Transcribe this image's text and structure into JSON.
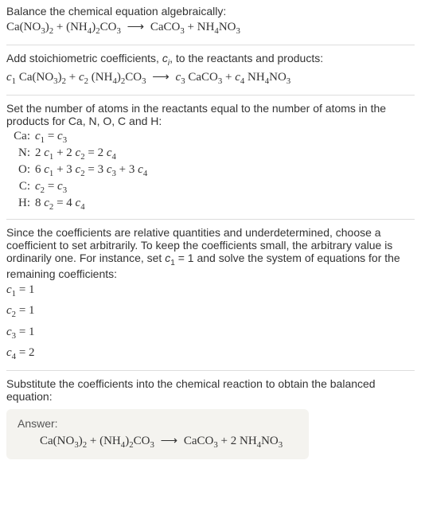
{
  "intro": {
    "line1": "Balance the chemical equation algebraically:"
  },
  "step1": {
    "text": "Add stoichiometric coefficients, ",
    "ci": "c",
    "ci_sub": "i",
    "text2": ", to the reactants and products:"
  },
  "step2": {
    "line1": "Set the number of atoms in the reactants equal to the number of atoms in the products for Ca, N, O, C and H:",
    "rows": [
      {
        "el": "Ca:",
        "eq_lhs": "c",
        "eq": "1",
        "mid": " = ",
        "rhs_c": "c",
        "rhs_i": "3",
        "full": ""
      },
      {
        "el": "N:",
        "pre": "2 ",
        "c": "c",
        "i": "1",
        "mid": " + 2 ",
        "c2": "c",
        "i2": "2",
        "eq": " = 2 ",
        "c3": "c",
        "i3": "4"
      },
      {
        "el": "O:",
        "pre": "6 ",
        "c": "c",
        "i": "1",
        "mid": " + 3 ",
        "c2": "c",
        "i2": "2",
        "eq": " = 3 ",
        "c3": "c",
        "i3": "3",
        "mid2": " + 3 ",
        "c4": "c",
        "i4": "4"
      },
      {
        "el": "C:",
        "c": "c",
        "i": "2",
        "eq": " = ",
        "c3": "c",
        "i3": "3"
      },
      {
        "el": "H:",
        "pre": "8 ",
        "c": "c",
        "i": "2",
        "eq": " = 4 ",
        "c3": "c",
        "i3": "4"
      }
    ]
  },
  "step3": {
    "para": "Since the coefficients are relative quantities and underdetermined, choose a coefficient to set arbitrarily. To keep the coefficients small, the arbitrary value is ordinarily one. For instance, set ",
    "c1": "c",
    "c1i": "1",
    "para2": " = 1 and solve the system of equations for the remaining coefficients:",
    "sol": [
      {
        "c": "c",
        "i": "1",
        "v": " = 1"
      },
      {
        "c": "c",
        "i": "2",
        "v": " = 1"
      },
      {
        "c": "c",
        "i": "3",
        "v": " = 1"
      },
      {
        "c": "c",
        "i": "4",
        "v": " = 2"
      }
    ]
  },
  "step4": {
    "text": "Substitute the coefficients into the chemical reaction to obtain the balanced equation:"
  },
  "answer": {
    "label": "Answer:"
  },
  "chem": {
    "CaNO32": {
      "p1": "Ca(NO",
      "s1": "3",
      "p2": ")",
      "s2": "2"
    },
    "NH42CO3": {
      "p1": "(NH",
      "s1": "4",
      "p2": ")",
      "s2": "2",
      "p3": "CO",
      "s3": "3"
    },
    "CaCO3": {
      "p1": "CaCO",
      "s1": "3"
    },
    "NH4NO3": {
      "p1": "NH",
      "s1": "4",
      "p2": "NO",
      "s2": "3"
    },
    "arrow": "⟶",
    "plus": " + ",
    "two": "2 "
  },
  "coef": {
    "c": "c",
    "i1": "1",
    "i2": "2",
    "i3": "3",
    "i4": "4"
  }
}
